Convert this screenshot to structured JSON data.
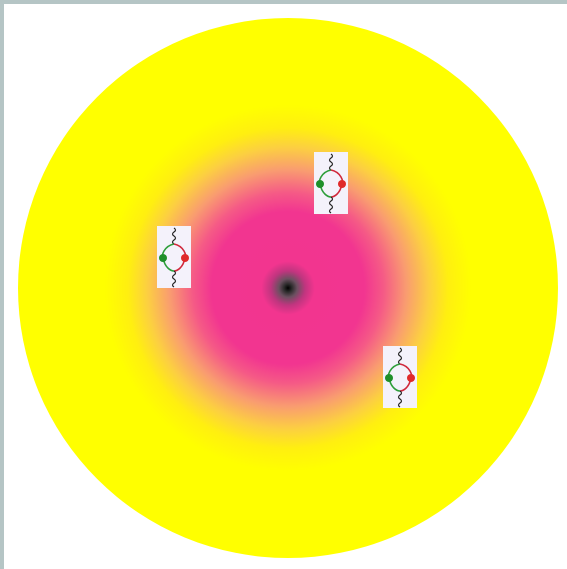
{
  "scene": {
    "background": "#ffffff",
    "frame_color": "#b5c5c5",
    "glow_colors": {
      "core": "#000000",
      "inner": "#f23590",
      "outer": "#ffff00",
      "edge": "#ffffff"
    },
    "loop_diagrams": [
      {
        "name": "loop-diagram-top",
        "icon": "feynman-loop-icon"
      },
      {
        "name": "loop-diagram-left",
        "icon": "feynman-loop-icon"
      },
      {
        "name": "loop-diagram-right",
        "icon": "feynman-loop-icon"
      }
    ],
    "diagram_colors": {
      "boson_line": "#222222",
      "left_arc": "#2e9e3a",
      "right_arc": "#d0283c",
      "left_vertex": "#1f8f2a",
      "right_vertex": "#e02a2a",
      "card": "#f4f2fb"
    }
  }
}
